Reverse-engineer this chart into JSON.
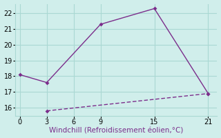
{
  "xlabel": "Windchill (Refroidissement éolien,°C)",
  "line1_x": [
    0,
    3,
    9,
    15,
    21
  ],
  "line1_y": [
    18.1,
    17.6,
    21.3,
    22.3,
    16.9
  ],
  "line2_x": [
    3,
    21
  ],
  "line2_y": [
    15.8,
    16.9
  ],
  "line_color": "#7b2d8b",
  "bg_color": "#d0eeeb",
  "grid_color": "#aad8d3",
  "xlim": [
    -0.5,
    22
  ],
  "ylim": [
    15.5,
    22.6
  ],
  "xticks": [
    0,
    3,
    6,
    9,
    15,
    21
  ],
  "yticks": [
    16,
    17,
    18,
    19,
    20,
    21,
    22
  ],
  "marker": "D",
  "markersize": 3,
  "linewidth": 1.0,
  "xlabel_fontsize": 7.5,
  "tick_fontsize": 7
}
